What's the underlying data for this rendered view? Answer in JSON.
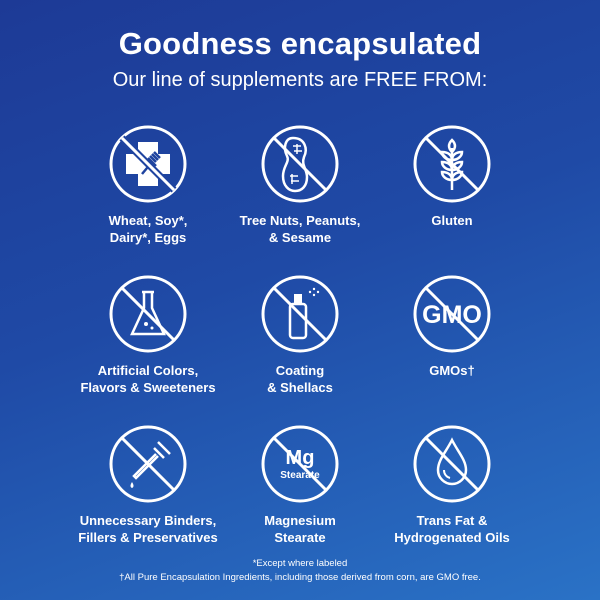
{
  "header": {
    "title": "Goodness encapsulated",
    "subtitle": "Our line of supplements are FREE FROM:"
  },
  "items": [
    {
      "icon": "no-allergen-icon",
      "label_lines": [
        "Wheat, Soy*,",
        "Dairy*, Eggs"
      ]
    },
    {
      "icon": "no-peanut-icon",
      "label_lines": [
        "Tree Nuts, Peanuts,",
        "& Sesame"
      ]
    },
    {
      "icon": "no-wheat-grain-icon",
      "label_lines": [
        "Gluten"
      ]
    },
    {
      "icon": "no-flask-icon",
      "label_lines": [
        "Artificial Colors,",
        "Flavors & Sweeteners"
      ]
    },
    {
      "icon": "no-spray-bottle-icon",
      "label_lines": [
        "Coating",
        "& Shellacs"
      ]
    },
    {
      "icon": "no-gmo-icon",
      "icon_text": "GMO",
      "label_lines": [
        "GMOs†"
      ]
    },
    {
      "icon": "no-dropper-icon",
      "label_lines": [
        "Unnecessary Binders,",
        "Fillers & Preservatives"
      ]
    },
    {
      "icon": "mg-stearate-icon",
      "icon_text": "Mg",
      "icon_subtext": "Stearate",
      "label_lines": [
        "Magnesium",
        "Stearate"
      ]
    },
    {
      "icon": "no-oil-drop-icon",
      "label_lines": [
        "Trans Fat &",
        "Hydrogenated Oils"
      ]
    }
  ],
  "footnotes": [
    "*Except where labeled",
    "†All Pure Encapsulation Ingredients, including those derived from corn, are GMO free."
  ],
  "colors": {
    "background_start": "#1d3a96",
    "background_end": "#2a72c6",
    "foreground": "#ffffff"
  }
}
